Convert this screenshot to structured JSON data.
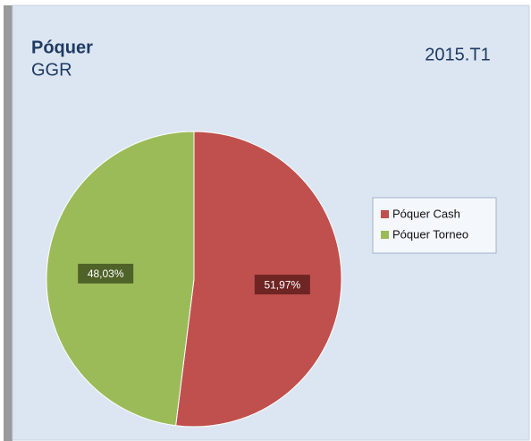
{
  "chart_data": {
    "type": "pie",
    "title": "Póquer",
    "subtitle": "GGR",
    "annotation": "2015.T1",
    "categories": [
      "Póquer Cash",
      "Póquer Torneo"
    ],
    "values": [
      51.97,
      48.03
    ],
    "value_labels": [
      "51,97%",
      "48,03%"
    ],
    "colors": [
      "#c0504d",
      "#9bbb59"
    ],
    "label_colors": [
      "#6e2523",
      "#4f6228"
    ],
    "legend": "right"
  }
}
